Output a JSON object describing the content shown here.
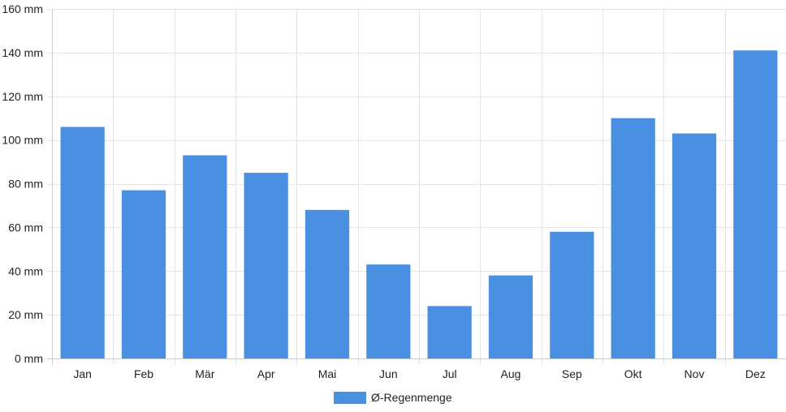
{
  "chart_data": {
    "type": "bar",
    "categories": [
      "Jan",
      "Feb",
      "Mär",
      "Apr",
      "Mai",
      "Jun",
      "Jul",
      "Aug",
      "Sep",
      "Okt",
      "Nov",
      "Dez"
    ],
    "series": [
      {
        "name": "Ø-Regenmenge",
        "values": [
          106,
          77,
          93,
          85,
          68,
          43,
          24,
          38,
          58,
          110,
          103,
          141
        ]
      }
    ],
    "y_unit_suffix": " mm",
    "ylim": [
      0,
      160
    ],
    "y_ticks": [
      0,
      20,
      40,
      60,
      80,
      100,
      120,
      140,
      160
    ],
    "grid": true,
    "legend_position": "bottom-center",
    "colors": {
      "bar": "#4a90e2",
      "grid": "#e5e5e5",
      "axis": "#cccccc"
    }
  }
}
